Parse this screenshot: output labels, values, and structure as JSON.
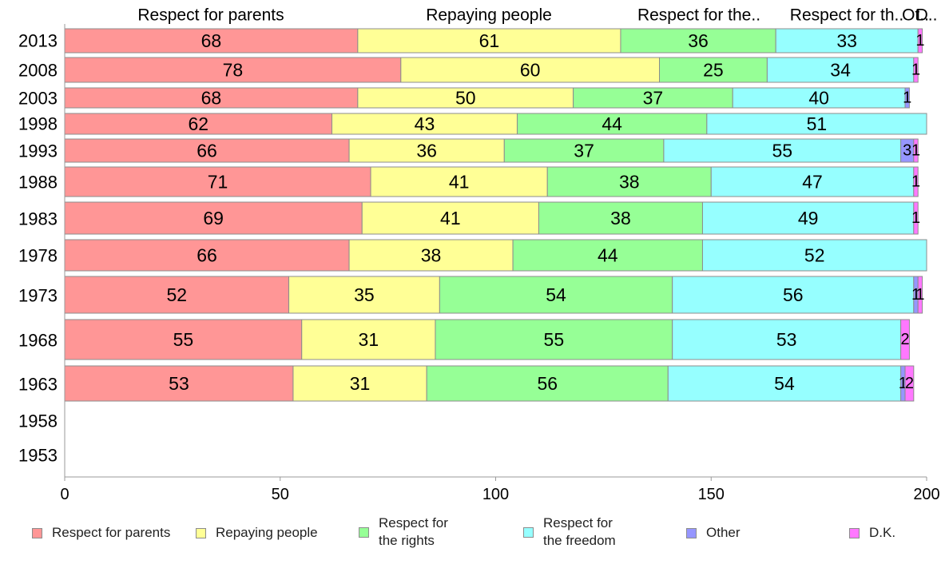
{
  "chart_data": {
    "type": "bar",
    "orientation": "horizontal",
    "stacked": true,
    "categories": [
      "2013",
      "2008",
      "2003",
      "1998",
      "1993",
      "1988",
      "1983",
      "1978",
      "1973",
      "1968",
      "1963",
      "1958",
      "1953"
    ],
    "header_labels": [
      "Respect for parents",
      "Repaying people",
      "Respect for the..",
      "Respect for th..",
      "Ot..",
      "D.."
    ],
    "series": [
      {
        "name": "Respect for parents",
        "color": "#ff9696",
        "values": [
          68,
          78,
          68,
          62,
          66,
          71,
          69,
          66,
          52,
          55,
          53,
          null,
          null
        ]
      },
      {
        "name": "Repaying people",
        "color": "#ffff96",
        "values": [
          61,
          60,
          50,
          43,
          36,
          41,
          41,
          38,
          35,
          31,
          31,
          null,
          null
        ]
      },
      {
        "name": "Respect for the rights",
        "color": "#96ff96",
        "values": [
          36,
          25,
          37,
          44,
          37,
          38,
          38,
          44,
          54,
          55,
          56,
          null,
          null
        ]
      },
      {
        "name": "Respect for the freedom",
        "color": "#96ffff",
        "values": [
          33,
          34,
          40,
          51,
          55,
          47,
          49,
          52,
          56,
          53,
          54,
          null,
          null
        ]
      },
      {
        "name": "Other",
        "color": "#9696ff",
        "values": [
          0,
          0,
          1,
          0,
          3,
          0,
          0,
          0,
          1,
          0,
          1,
          null,
          null
        ]
      },
      {
        "name": "D.K.",
        "color": "#ff78ff",
        "values": [
          1,
          1,
          0,
          0,
          1,
          1,
          1,
          0,
          1,
          2,
          2,
          null,
          null
        ]
      }
    ],
    "xlim": [
      0,
      200
    ],
    "xticks": [
      "0",
      "50",
      "100",
      "150",
      "200"
    ],
    "grid": false,
    "legend_position": "bottom"
  },
  "legend": [
    {
      "label": "Respect for parents",
      "color": "#ff9696"
    },
    {
      "label": "Repaying people",
      "color": "#ffff96"
    },
    {
      "label": "Respect for\nthe rights",
      "color": "#96ff96"
    },
    {
      "label": "Respect for\nthe freedom",
      "color": "#96ffff"
    },
    {
      "label": "Other",
      "color": "#9696ff"
    },
    {
      "label": "D.K.",
      "color": "#ff78ff"
    }
  ]
}
